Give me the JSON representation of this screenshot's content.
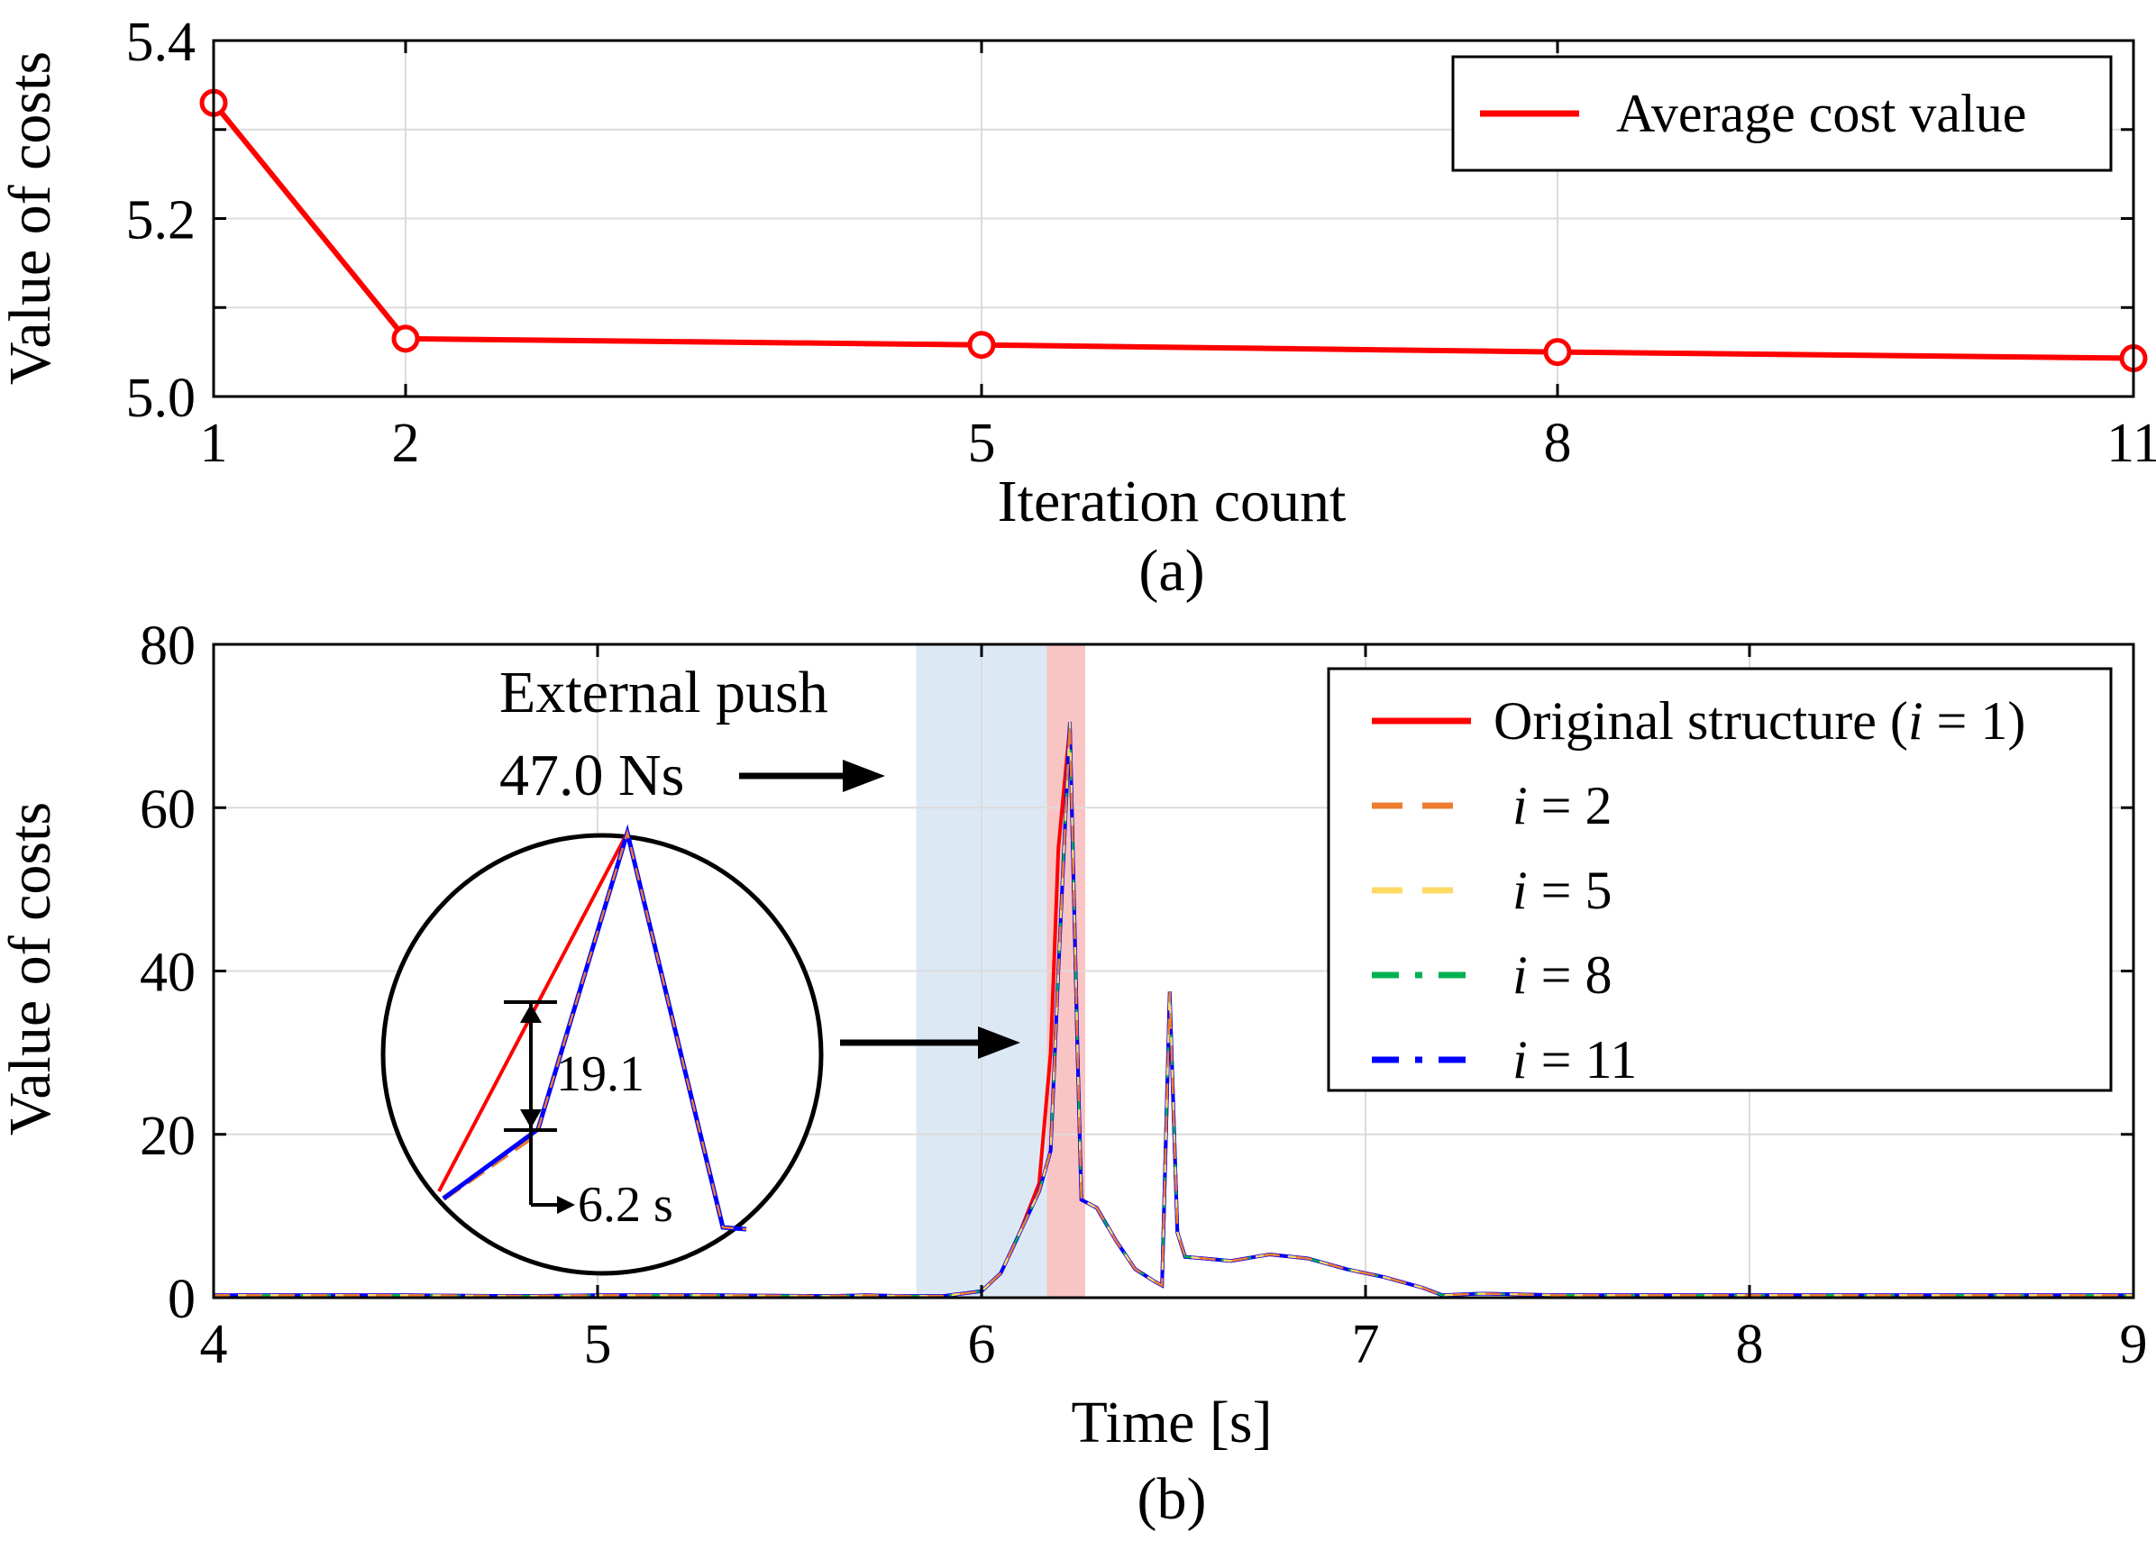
{
  "chart_data": [
    {
      "type": "line",
      "panel_label": "(a)",
      "xlabel": "Iteration count",
      "ylabel": "Value of costs",
      "xlim": [
        1,
        11
      ],
      "ylim": [
        5.0,
        5.4
      ],
      "xticks": [
        1,
        2,
        5,
        8,
        11
      ],
      "yticks": [
        5.0,
        5.2,
        5.4
      ],
      "xtick_labels": [
        "1",
        "2",
        "5",
        "8",
        "11"
      ],
      "ytick_labels": [
        "5.0",
        "5.2",
        "5.4"
      ],
      "grid": true,
      "legend_position": "top-right",
      "series": [
        {
          "name": "Average cost value",
          "color": "#ff0000",
          "marker": "circle",
          "x": [
            1,
            2,
            5,
            8,
            11
          ],
          "values": [
            5.33,
            5.065,
            5.058,
            5.05,
            5.043
          ]
        }
      ]
    },
    {
      "type": "line",
      "panel_label": "(b)",
      "xlabel": "Time [s]",
      "ylabel": "Value of costs",
      "xlim": [
        4,
        9
      ],
      "ylim": [
        0,
        80
      ],
      "xticks": [
        4,
        5,
        6,
        7,
        8,
        9
      ],
      "yticks": [
        0,
        20,
        40,
        60,
        80
      ],
      "xtick_labels": [
        "4",
        "5",
        "6",
        "7",
        "8",
        "9"
      ],
      "ytick_labels": [
        "0",
        "20",
        "40",
        "60",
        "80"
      ],
      "grid": true,
      "legend_position": "top-right",
      "legend": [
        {
          "prefix": "Original structure (",
          "var": "i",
          "suffix": " = 1)",
          "color": "#ff0000",
          "dash": "solid"
        },
        {
          "prefix": "",
          "var": "i",
          "suffix": " = 2",
          "color": "#ed7d31",
          "dash": "dashed"
        },
        {
          "prefix": "",
          "var": "i",
          "suffix": " = 5",
          "color": "#ffd966",
          "dash": "dashed"
        },
        {
          "prefix": "",
          "var": "i",
          "suffix": " = 8",
          "color": "#00b050",
          "dash": "dashdot"
        },
        {
          "prefix": "",
          "var": "i",
          "suffix": " = 11",
          "color": "#0000ff",
          "dash": "dashdot"
        }
      ],
      "shaded_regions": [
        {
          "x": [
            5.83,
            6.17
          ],
          "color": "#dce9f5",
          "meaning": "external push"
        },
        {
          "x": [
            6.17,
            6.27
          ],
          "color": "#f8c4c4",
          "meaning": "zoom"
        }
      ],
      "series": [
        {
          "name": "Original structure (i = 1)",
          "color": "#ff0000",
          "x": [
            4.0,
            4.5,
            4.8,
            5.0,
            5.3,
            5.6,
            5.7,
            5.8,
            5.9,
            6.0,
            6.05,
            6.1,
            6.15,
            6.18,
            6.2,
            6.23,
            6.25,
            6.26,
            6.3,
            6.35,
            6.4,
            6.45,
            6.47,
            6.49,
            6.51,
            6.53,
            6.58,
            6.65,
            6.75,
            6.85,
            6.95,
            7.05,
            7.15,
            7.2,
            7.3,
            7.5,
            8.0,
            8.5,
            9.0
          ],
          "values": [
            0.3,
            0.3,
            0.2,
            0.3,
            0.3,
            0.2,
            0.3,
            0.2,
            0.2,
            0.8,
            3.0,
            8.0,
            14.0,
            30.0,
            55.0,
            70.0,
            30.0,
            12.0,
            11.0,
            7.0,
            3.5,
            2.0,
            1.5,
            37.0,
            8.0,
            5.0,
            4.8,
            4.5,
            5.3,
            4.8,
            3.5,
            2.5,
            1.2,
            0.3,
            0.5,
            0.3,
            0.3,
            0.3,
            0.3
          ]
        },
        {
          "name": "i = 11",
          "color": "#0000ff",
          "x": [
            4.0,
            4.5,
            4.8,
            5.0,
            5.3,
            5.6,
            5.7,
            5.8,
            5.9,
            6.0,
            6.05,
            6.1,
            6.15,
            6.18,
            6.2,
            6.23,
            6.25,
            6.26,
            6.3,
            6.35,
            6.4,
            6.45,
            6.47,
            6.49,
            6.51,
            6.53,
            6.58,
            6.65,
            6.75,
            6.85,
            6.95,
            7.05,
            7.15,
            7.2,
            7.3,
            7.5,
            8.0,
            8.5,
            9.0
          ],
          "values": [
            0.3,
            0.3,
            0.2,
            0.3,
            0.3,
            0.2,
            0.3,
            0.2,
            0.2,
            0.8,
            3.0,
            8.0,
            13.0,
            18.0,
            40.0,
            70.5,
            30.0,
            12.0,
            11.0,
            7.0,
            3.5,
            2.0,
            1.5,
            37.5,
            8.0,
            5.0,
            4.8,
            4.5,
            5.3,
            4.8,
            3.5,
            2.5,
            1.2,
            0.3,
            0.5,
            0.3,
            0.3,
            0.3,
            0.3
          ]
        }
      ],
      "annotations": {
        "push_line1": "External push",
        "push_line2": "47.0 Ns",
        "zoom_delta": "19.1",
        "zoom_time": "6.2 s"
      }
    }
  ]
}
